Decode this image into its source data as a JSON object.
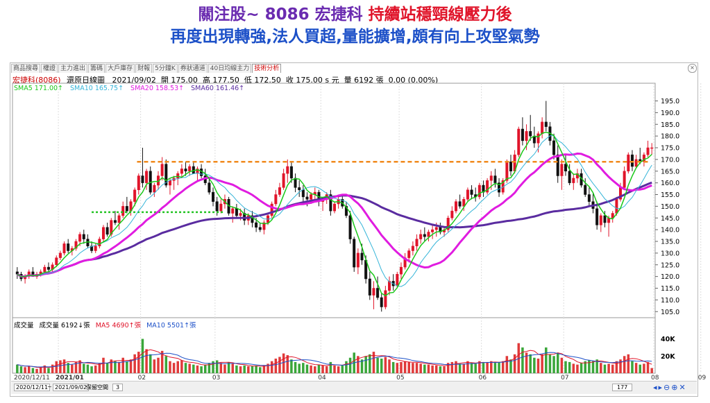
{
  "header": {
    "title_part1": "關注股~ 8086 宏捷科 ",
    "title_part2": "持續站穩頸線壓力後",
    "subtitle": "再度出現轉強,法人買超,量能擴增,頗有向上攻堅氣勢"
  },
  "tabs": [
    "商品搜尋",
    "權證",
    "主力進出",
    "籌碼",
    "大戶庫存",
    "財報",
    "5分鐘K",
    "券狀通道",
    "40日均線主力",
    "技術分析"
  ],
  "active_tab": 9,
  "stock": {
    "name": "宏捷科(8086)",
    "mode": "還原日線圖",
    "date": "2021/09/02",
    "open_label": "開",
    "open": "175.00",
    "high_label": "高",
    "high": "177.50",
    "low_label": "低",
    "low": "172.50",
    "close_label": "收",
    "close": "175.00 s 元",
    "volume_label": "量",
    "volume": "6192 張",
    "change": "0.00 (0.00%)"
  },
  "sma_legend": [
    {
      "text": "SMA5 171.00↑",
      "color": "#19c819"
    },
    {
      "text": "SMA10 165.75↑",
      "color": "#34b4d8"
    },
    {
      "text": "SMA20 158.53↑",
      "color": "#e01ce0"
    },
    {
      "text": "SMA60 161.46↑",
      "color": "#5a2ca0"
    }
  ],
  "volume_legend": [
    {
      "text": "成交量",
      "color": "#000"
    },
    {
      "text": "成交量 6192↓張",
      "color": "#000"
    },
    {
      "text": "MA5 4690↑張",
      "color": "#e0142a"
    },
    {
      "text": "MA10 5501↑張",
      "color": "#1c50c8"
    }
  ],
  "bottom_bar": {
    "date_from": "2020/12/11",
    "date_to": "2021/09/02",
    "reserve_label": "保留空間",
    "reserve_value": "3",
    "count": "177"
  },
  "chart_data": {
    "type": "candlestick",
    "price_axis": {
      "min": 103,
      "max": 199,
      "ticks": [
        105,
        110,
        115,
        120,
        125,
        130,
        135,
        140,
        145,
        150,
        155,
        160,
        165,
        170,
        175,
        180,
        185,
        190,
        195
      ]
    },
    "volume_axis": {
      "max": 55,
      "ticks": [
        {
          "value": 20,
          "label": "20K"
        },
        {
          "value": 40,
          "label": "40K"
        }
      ]
    },
    "date_axis": [
      "2020/12/11",
      "2021/01",
      "02",
      "03",
      "04",
      "05",
      "06",
      "07",
      "08",
      "09"
    ],
    "neckline_resistance": 169,
    "support_level": 147.5,
    "candles": [
      [
        122,
        124,
        119,
        121,
        10
      ],
      [
        121,
        122,
        118,
        119,
        8
      ],
      [
        119,
        121,
        117,
        120,
        7
      ],
      [
        120,
        123,
        119,
        122,
        8
      ],
      [
        122,
        124,
        120,
        120,
        6
      ],
      [
        120,
        122,
        119,
        121,
        5
      ],
      [
        121,
        123,
        120,
        122,
        7
      ],
      [
        122,
        125,
        121,
        124,
        9
      ],
      [
        124,
        126,
        122,
        123,
        6
      ],
      [
        123,
        126,
        122,
        125,
        10
      ],
      [
        125,
        129,
        124,
        128,
        14
      ],
      [
        128,
        131,
        127,
        130,
        15
      ],
      [
        130,
        135,
        129,
        134,
        16
      ],
      [
        134,
        136,
        130,
        131,
        12
      ],
      [
        131,
        133,
        129,
        132,
        10
      ],
      [
        132,
        136,
        131,
        135,
        13
      ],
      [
        135,
        139,
        133,
        138,
        15
      ],
      [
        138,
        140,
        134,
        136,
        11
      ],
      [
        136,
        138,
        132,
        133,
        10
      ],
      [
        133,
        135,
        130,
        131,
        8
      ],
      [
        131,
        134,
        130,
        133,
        9
      ],
      [
        133,
        137,
        132,
        136,
        12
      ],
      [
        136,
        142,
        135,
        141,
        18
      ],
      [
        141,
        143,
        137,
        138,
        12
      ],
      [
        138,
        145,
        137,
        144,
        16
      ],
      [
        144,
        148,
        142,
        143,
        14
      ],
      [
        143,
        147,
        140,
        146,
        13
      ],
      [
        146,
        152,
        145,
        150,
        18
      ],
      [
        150,
        154,
        147,
        148,
        14
      ],
      [
        148,
        153,
        146,
        152,
        16
      ],
      [
        152,
        158,
        150,
        157,
        22
      ],
      [
        157,
        164,
        155,
        163,
        25
      ],
      [
        163,
        175,
        158,
        160,
        40
      ],
      [
        160,
        166,
        157,
        165,
        28
      ],
      [
        165,
        167,
        155,
        156,
        22
      ],
      [
        156,
        160,
        154,
        159,
        16
      ],
      [
        159,
        165,
        157,
        163,
        18
      ],
      [
        163,
        171,
        161,
        168,
        26
      ],
      [
        168,
        170,
        158,
        159,
        20
      ],
      [
        159,
        162,
        155,
        161,
        14
      ],
      [
        161,
        163,
        157,
        162,
        12
      ],
      [
        162,
        165,
        159,
        164,
        14
      ],
      [
        164,
        168,
        162,
        166,
        15
      ],
      [
        166,
        169,
        163,
        165,
        12
      ],
      [
        165,
        168,
        163,
        167,
        11
      ],
      [
        167,
        169,
        164,
        164,
        10
      ],
      [
        164,
        167,
        161,
        166,
        9
      ],
      [
        166,
        168,
        162,
        163,
        8
      ],
      [
        163,
        166,
        159,
        160,
        10
      ],
      [
        160,
        162,
        155,
        156,
        12
      ],
      [
        156,
        158,
        150,
        152,
        14
      ],
      [
        152,
        154,
        146,
        148,
        15
      ],
      [
        148,
        153,
        147,
        151,
        12
      ],
      [
        151,
        155,
        149,
        153,
        10
      ],
      [
        153,
        154,
        146,
        147,
        13
      ],
      [
        147,
        150,
        143,
        149,
        11
      ],
      [
        149,
        151,
        145,
        146,
        9
      ],
      [
        146,
        149,
        144,
        147,
        8
      ],
      [
        147,
        149,
        142,
        144,
        9
      ],
      [
        144,
        147,
        142,
        146,
        8
      ],
      [
        146,
        148,
        141,
        143,
        8
      ],
      [
        143,
        145,
        139,
        141,
        9
      ],
      [
        141,
        143,
        139,
        140,
        7
      ],
      [
        140,
        144,
        138,
        143,
        9
      ],
      [
        143,
        147,
        142,
        146,
        11
      ],
      [
        146,
        152,
        145,
        151,
        14
      ],
      [
        151,
        157,
        150,
        155,
        17
      ],
      [
        155,
        160,
        154,
        158,
        19
      ],
      [
        158,
        166,
        157,
        164,
        23
      ],
      [
        164,
        170,
        160,
        167,
        21
      ],
      [
        167,
        169,
        160,
        162,
        16
      ],
      [
        162,
        164,
        156,
        158,
        13
      ],
      [
        158,
        161,
        154,
        157,
        11
      ],
      [
        157,
        159,
        152,
        154,
        12
      ],
      [
        154,
        156,
        150,
        153,
        10
      ],
      [
        153,
        156,
        151,
        155,
        9
      ],
      [
        155,
        158,
        153,
        156,
        8
      ],
      [
        156,
        157,
        150,
        152,
        10
      ],
      [
        152,
        154,
        148,
        153,
        9
      ],
      [
        153,
        156,
        151,
        155,
        8
      ],
      [
        155,
        157,
        146,
        148,
        13
      ],
      [
        148,
        152,
        147,
        151,
        9
      ],
      [
        151,
        154,
        149,
        153,
        8
      ],
      [
        153,
        155,
        149,
        150,
        9
      ],
      [
        150,
        152,
        145,
        146,
        14
      ],
      [
        146,
        148,
        134,
        136,
        18
      ],
      [
        136,
        137,
        122,
        124,
        24
      ],
      [
        124,
        132,
        121,
        130,
        20
      ],
      [
        130,
        134,
        125,
        127,
        16
      ],
      [
        127,
        129,
        117,
        119,
        20
      ],
      [
        119,
        122,
        110,
        112,
        22
      ],
      [
        112,
        118,
        106,
        115,
        25
      ],
      [
        115,
        120,
        110,
        111,
        18
      ],
      [
        111,
        113,
        105,
        107,
        17
      ],
      [
        107,
        116,
        106,
        114,
        19
      ],
      [
        114,
        120,
        112,
        118,
        16
      ],
      [
        118,
        121,
        114,
        116,
        13
      ],
      [
        116,
        122,
        115,
        121,
        12
      ],
      [
        121,
        126,
        119,
        124,
        13
      ],
      [
        124,
        130,
        123,
        128,
        14
      ],
      [
        128,
        132,
        126,
        131,
        13
      ],
      [
        131,
        135,
        129,
        133,
        12
      ],
      [
        133,
        138,
        131,
        136,
        12
      ],
      [
        136,
        140,
        134,
        138,
        11
      ],
      [
        138,
        141,
        135,
        137,
        10
      ],
      [
        137,
        140,
        135,
        139,
        10
      ],
      [
        139,
        142,
        136,
        140,
        9
      ],
      [
        140,
        143,
        137,
        141,
        9
      ],
      [
        141,
        143,
        138,
        139,
        8
      ],
      [
        139,
        141,
        137,
        140,
        8
      ],
      [
        140,
        146,
        139,
        145,
        12
      ],
      [
        145,
        150,
        144,
        148,
        13
      ],
      [
        148,
        153,
        147,
        152,
        14
      ],
      [
        152,
        155,
        149,
        150,
        11
      ],
      [
        150,
        154,
        148,
        153,
        11
      ],
      [
        153,
        158,
        152,
        157,
        14
      ],
      [
        157,
        159,
        153,
        155,
        12
      ],
      [
        155,
        158,
        152,
        154,
        11
      ],
      [
        154,
        160,
        153,
        159,
        14
      ],
      [
        159,
        161,
        154,
        156,
        12
      ],
      [
        156,
        162,
        155,
        161,
        13
      ],
      [
        161,
        165,
        157,
        163,
        14
      ],
      [
        163,
        166,
        158,
        160,
        12
      ],
      [
        160,
        162,
        154,
        156,
        13
      ],
      [
        156,
        162,
        155,
        161,
        14
      ],
      [
        161,
        170,
        160,
        169,
        20
      ],
      [
        169,
        172,
        163,
        165,
        16
      ],
      [
        165,
        174,
        164,
        172,
        22
      ],
      [
        172,
        184,
        171,
        183,
        35
      ],
      [
        183,
        188,
        176,
        178,
        30
      ],
      [
        178,
        185,
        174,
        182,
        24
      ],
      [
        182,
        189,
        178,
        180,
        22
      ],
      [
        180,
        184,
        175,
        177,
        18
      ],
      [
        177,
        182,
        173,
        181,
        17
      ],
      [
        181,
        188,
        179,
        186,
        22
      ],
      [
        186,
        195,
        182,
        184,
        30
      ],
      [
        184,
        186,
        176,
        178,
        22
      ],
      [
        178,
        181,
        170,
        172,
        20
      ],
      [
        172,
        176,
        160,
        163,
        24
      ],
      [
        163,
        170,
        157,
        168,
        18
      ],
      [
        168,
        172,
        163,
        165,
        14
      ],
      [
        165,
        168,
        159,
        160,
        13
      ],
      [
        160,
        164,
        157,
        162,
        11
      ],
      [
        162,
        166,
        160,
        164,
        10
      ],
      [
        164,
        166,
        158,
        159,
        12
      ],
      [
        159,
        162,
        154,
        155,
        14
      ],
      [
        155,
        158,
        150,
        152,
        15
      ],
      [
        152,
        156,
        147,
        149,
        14
      ],
      [
        149,
        152,
        140,
        142,
        16
      ],
      [
        142,
        147,
        139,
        146,
        12
      ],
      [
        146,
        148,
        141,
        143,
        10
      ],
      [
        143,
        146,
        137,
        145,
        11
      ],
      [
        145,
        148,
        143,
        147,
        10
      ],
      [
        147,
        154,
        146,
        153,
        14
      ],
      [
        153,
        160,
        152,
        158,
        16
      ],
      [
        158,
        167,
        157,
        165,
        20
      ],
      [
        165,
        173,
        164,
        172,
        22
      ],
      [
        172,
        174,
        165,
        167,
        14
      ],
      [
        167,
        172,
        166,
        170,
        12
      ],
      [
        170,
        175,
        168,
        169,
        10
      ],
      [
        169,
        173,
        167,
        172,
        11
      ],
      [
        172,
        178,
        171,
        175,
        13
      ],
      [
        175,
        177,
        172,
        175,
        6
      ]
    ]
  }
}
